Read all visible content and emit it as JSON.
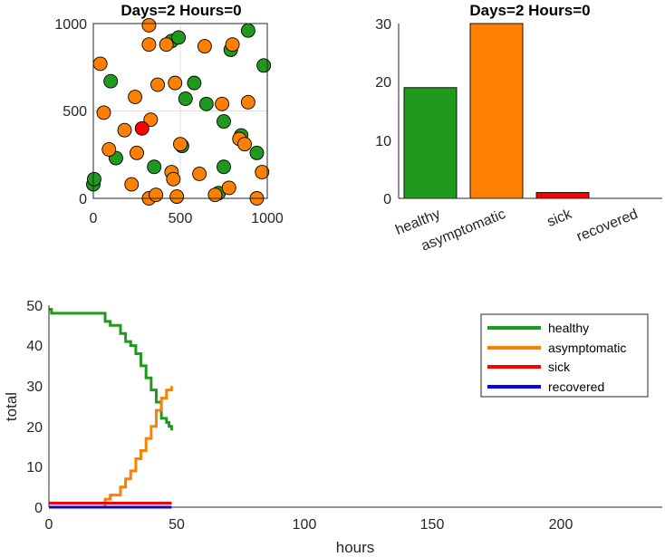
{
  "chart_data": [
    {
      "type": "scatter",
      "title": "Days=2 Hours=0",
      "xlim": [
        0,
        1000
      ],
      "ylim": [
        0,
        1000
      ],
      "xticks": [
        "0",
        "500",
        "1000"
      ],
      "yticks": [
        "0",
        "500",
        "1000"
      ],
      "grid": true,
      "series": [
        {
          "key": "healthy",
          "color": "#1f9a1f",
          "points": [
            [
              0,
              80
            ],
            [
              5,
              110
            ],
            [
              100,
              670
            ],
            [
              130,
              230
            ],
            [
              350,
              180
            ],
            [
              450,
              900
            ],
            [
              490,
              920
            ],
            [
              510,
              300
            ],
            [
              530,
              570
            ],
            [
              580,
              660
            ],
            [
              650,
              540
            ],
            [
              720,
              30
            ],
            [
              750,
              440
            ],
            [
              750,
              180
            ],
            [
              790,
              850
            ],
            [
              850,
              360
            ],
            [
              890,
              960
            ],
            [
              940,
              260
            ],
            [
              980,
              760
            ]
          ]
        },
        {
          "key": "asymptomatic",
          "color": "#ff8000",
          "points": [
            [
              40,
              770
            ],
            [
              60,
              490
            ],
            [
              90,
              280
            ],
            [
              180,
              390
            ],
            [
              220,
              80
            ],
            [
              240,
              580
            ],
            [
              250,
              260
            ],
            [
              320,
              990
            ],
            [
              320,
              880
            ],
            [
              320,
              0
            ],
            [
              330,
              450
            ],
            [
              360,
              20
            ],
            [
              370,
              650
            ],
            [
              420,
              880
            ],
            [
              450,
              150
            ],
            [
              460,
              110
            ],
            [
              470,
              660
            ],
            [
              480,
              10
            ],
            [
              500,
              310
            ],
            [
              610,
              140
            ],
            [
              640,
              870
            ],
            [
              700,
              20
            ],
            [
              740,
              540
            ],
            [
              780,
              60
            ],
            [
              800,
              880
            ],
            [
              840,
              340
            ],
            [
              870,
              310
            ],
            [
              890,
              550
            ],
            [
              940,
              0
            ],
            [
              970,
              150
            ]
          ]
        },
        {
          "key": "sick",
          "color": "#ff0000",
          "points": [
            [
              280,
              400
            ]
          ]
        }
      ]
    },
    {
      "type": "bar",
      "title": "Days=2 Hours=0",
      "categories": [
        "healthy",
        "asymptomatic",
        "sick",
        "recovered"
      ],
      "values": [
        19,
        30,
        1,
        0
      ],
      "colors": [
        "#1f9a1f",
        "#ff8000",
        "#ff0000",
        "#0000ff"
      ],
      "ylim": [
        0,
        30
      ],
      "yticks": [
        "0",
        "10",
        "20",
        "30"
      ]
    },
    {
      "type": "line",
      "xlabel": "hours",
      "ylabel": "total",
      "xlim": [
        0,
        240
      ],
      "ylim": [
        0,
        50
      ],
      "xticks": [
        "0",
        "50",
        "100",
        "150",
        "200"
      ],
      "yticks": [
        "0",
        "10",
        "20",
        "30",
        "40",
        "50"
      ],
      "legend_position": "top-right",
      "series": [
        {
          "name": "healthy",
          "color": "#1f9a1f",
          "x": [
            0,
            1,
            2,
            20,
            22,
            24,
            26,
            28,
            30,
            32,
            34,
            36,
            38,
            40,
            42,
            44,
            46,
            47,
            48
          ],
          "y": [
            49,
            48,
            48,
            48,
            46,
            45,
            45,
            43,
            41,
            40,
            38,
            35,
            32,
            29,
            26,
            22,
            21,
            20,
            19
          ]
        },
        {
          "name": "asymptomatic",
          "color": "#ff8000",
          "x": [
            0,
            20,
            22,
            24,
            26,
            28,
            30,
            32,
            34,
            36,
            38,
            40,
            42,
            44,
            46,
            48
          ],
          "y": [
            0,
            0,
            2,
            3,
            3,
            5,
            7,
            9,
            12,
            14,
            17,
            20,
            24,
            27,
            29,
            30
          ]
        },
        {
          "name": "sick",
          "color": "#ff0000",
          "x": [
            0,
            48
          ],
          "y": [
            1,
            1
          ]
        },
        {
          "name": "recovered",
          "color": "#0000ff",
          "x": [
            0,
            48
          ],
          "y": [
            0,
            0
          ]
        }
      ]
    }
  ]
}
